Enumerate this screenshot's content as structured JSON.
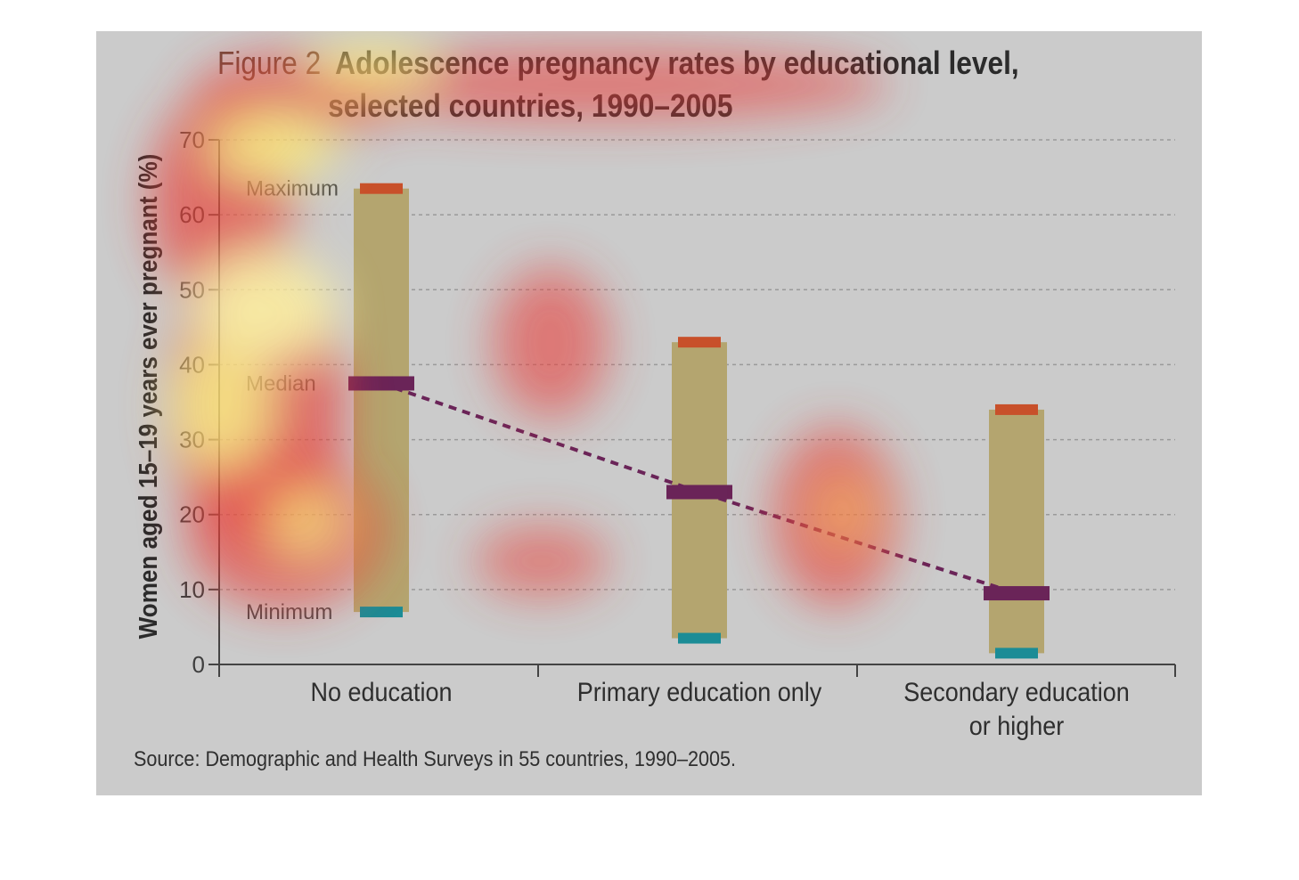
{
  "figure": {
    "title_prefix": "Figure 2",
    "title_line1": "Adolescence pregnancy rates by educational level,",
    "title_line2": "selected countries, 1990–2005",
    "source": "Source: Demographic and Health Surveys in 55 countries, 1990–2005."
  },
  "chart_data": {
    "type": "bar",
    "ylabel": "Women aged 15–19 years ever pregnant (%)",
    "ylim": [
      0,
      70
    ],
    "yticks": [
      "0",
      "10",
      "20",
      "30",
      "40",
      "50",
      "60",
      "70"
    ],
    "grid": true,
    "categories": [
      {
        "lines": [
          "No education"
        ]
      },
      {
        "lines": [
          "Primary education only"
        ]
      },
      {
        "lines": [
          "Secondary education",
          "or higher"
        ]
      }
    ],
    "series": [
      {
        "name": "Maximum",
        "values": [
          63.5,
          43,
          34
        ]
      },
      {
        "name": "Median",
        "values": [
          37.5,
          23,
          9.5
        ]
      },
      {
        "name": "Minimum",
        "values": [
          7,
          3.5,
          1.5
        ]
      }
    ],
    "annotations": [
      "Maximum",
      "Median",
      "Minimum"
    ],
    "colors": {
      "range_bar": "#b4a56f",
      "maximum": "#c8502a",
      "median": "#6a2458",
      "minimum": "#1b8c96",
      "median_line": "#6a2458",
      "grid": "#9a9a9a",
      "axis": "#444444"
    },
    "heatmap_overlay": true
  }
}
